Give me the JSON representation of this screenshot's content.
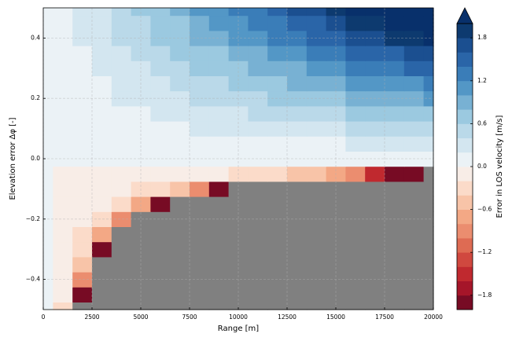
{
  "chart_data": {
    "type": "contourf",
    "xlabel": "Range [m]",
    "ylabel": "Elevation error Δφ [-]",
    "colorbar_label": "Error in LOS velocity [m/s]",
    "xlim": [
      0,
      20000
    ],
    "ylim": [
      -0.5,
      0.5
    ],
    "xticks": [
      0,
      2500,
      5000,
      7500,
      10000,
      12500,
      15000,
      17500,
      20000
    ],
    "yticks": [
      {
        "value": -0.4,
        "label": "−0.4"
      },
      {
        "value": -0.2,
        "label": "−0.2"
      },
      {
        "value": 0,
        "label": "0.0"
      },
      0.2,
      0.4
    ],
    "grid": true,
    "masked_color": "#808080",
    "extend": "max",
    "levels": [
      -2,
      -1.8,
      -1.6,
      -1.4,
      -1.2,
      -1,
      -0.8,
      -0.6,
      -0.4,
      -0.2,
      0,
      0.2,
      0.4,
      0.6,
      0.8,
      1,
      1.2,
      1.4,
      1.6,
      1.8,
      2
    ],
    "colors": [
      "#770b24",
      "#a51529",
      "#c0292f",
      "#d0483f",
      "#de6b53",
      "#eb8d6f",
      "#f3a885",
      "#f8c4a8",
      "#fbdbc9",
      "#f8ede7",
      "#ebf2f6",
      "#d3e6f0",
      "#bad9e9",
      "#9bc9e0",
      "#78b1d3",
      "#5397c6",
      "#3a7db8",
      "#2a65a8",
      "#1b4f90",
      "#0d3a6f"
    ],
    "extend_color": "#08306b",
    "cbar_ticks": [
      {
        "value": -1.8,
        "label": "−1.8"
      },
      {
        "value": -1.2,
        "label": "−1.2"
      },
      {
        "value": -0.6,
        "label": "−0.6"
      },
      {
        "value": 0,
        "label": "0.0"
      },
      0.6,
      1.2,
      1.8
    ],
    "x": [
      0,
      1000,
      2000,
      3000,
      4000,
      5000,
      6000,
      7000,
      8000,
      9000,
      10000,
      11000,
      12000,
      13000,
      14000,
      15000,
      16000,
      17000,
      18000,
      19000,
      20000
    ],
    "y": [
      -0.5,
      -0.45,
      -0.4,
      -0.35,
      -0.3,
      -0.25,
      -0.2,
      -0.15,
      -0.1,
      -0.05,
      0,
      0.05,
      0.1,
      0.15,
      0.2,
      0.25,
      0.3,
      0.35,
      0.4,
      0.45,
      0.5
    ],
    "z": [
      [
        0,
        -0.25,
        null,
        null,
        null,
        null,
        null,
        null,
        null,
        null,
        null,
        null,
        null,
        null,
        null,
        null,
        null,
        null,
        null,
        null,
        null
      ],
      [
        0,
        -0.2,
        -1.9,
        null,
        null,
        null,
        null,
        null,
        null,
        null,
        null,
        null,
        null,
        null,
        null,
        null,
        null,
        null,
        null,
        null,
        null
      ],
      [
        0,
        -0.17,
        -1,
        null,
        null,
        null,
        null,
        null,
        null,
        null,
        null,
        null,
        null,
        null,
        null,
        null,
        null,
        null,
        null,
        null,
        null
      ],
      [
        0,
        -0.13,
        -0.58,
        null,
        null,
        null,
        null,
        null,
        null,
        null,
        null,
        null,
        null,
        null,
        null,
        null,
        null,
        null,
        null,
        null,
        null
      ],
      [
        0,
        -0.11,
        -0.38,
        -1.9,
        null,
        null,
        null,
        null,
        null,
        null,
        null,
        null,
        null,
        null,
        null,
        null,
        null,
        null,
        null,
        null,
        null
      ],
      [
        0,
        -0.08,
        -0.25,
        -0.75,
        null,
        null,
        null,
        null,
        null,
        null,
        null,
        null,
        null,
        null,
        null,
        null,
        null,
        null,
        null,
        null,
        null
      ],
      [
        0,
        -0.06,
        -0.17,
        -0.38,
        -1,
        null,
        null,
        null,
        null,
        null,
        null,
        null,
        null,
        null,
        null,
        null,
        null,
        null,
        null,
        null,
        null
      ],
      [
        0,
        -0.04,
        -0.11,
        -0.2,
        -0.38,
        -0.75,
        -1.9,
        null,
        null,
        null,
        null,
        null,
        null,
        null,
        null,
        null,
        null,
        null,
        null,
        null,
        null
      ],
      [
        0,
        -0.03,
        -0.06,
        -0.11,
        -0.17,
        -0.25,
        -0.38,
        -0.58,
        -1,
        -1.9,
        null,
        null,
        null,
        null,
        null,
        null,
        null,
        null,
        null,
        null,
        null
      ],
      [
        0,
        -0.01,
        -0.03,
        -0.04,
        -0.06,
        -0.08,
        -0.11,
        -0.13,
        -0.17,
        -0.2,
        -0.25,
        -0.31,
        -0.38,
        -0.46,
        -0.58,
        -0.75,
        -1,
        -1.42,
        -1.9,
        -1.95,
        null
      ],
      [
        0,
        0,
        0,
        0,
        0,
        0,
        0,
        0,
        0,
        0,
        0,
        0,
        0,
        0,
        0,
        0,
        0,
        0,
        0,
        0,
        0
      ],
      [
        0,
        0.01,
        0.03,
        0.04,
        0.05,
        0.06,
        0.08,
        0.09,
        0.1,
        0.11,
        0.13,
        0.14,
        0.15,
        0.16,
        0.18,
        0.19,
        0.2,
        0.21,
        0.23,
        0.24,
        0.25
      ],
      [
        0,
        0.03,
        0.05,
        0.08,
        0.1,
        0.13,
        0.15,
        0.18,
        0.2,
        0.23,
        0.25,
        0.28,
        0.3,
        0.33,
        0.35,
        0.38,
        0.4,
        0.43,
        0.45,
        0.48,
        0.5
      ],
      [
        0,
        0.04,
        0.08,
        0.11,
        0.15,
        0.19,
        0.23,
        0.26,
        0.3,
        0.34,
        0.38,
        0.41,
        0.45,
        0.49,
        0.53,
        0.56,
        0.6,
        0.64,
        0.68,
        0.71,
        0.75
      ],
      [
        0,
        0.05,
        0.1,
        0.15,
        0.2,
        0.25,
        0.3,
        0.35,
        0.4,
        0.45,
        0.5,
        0.55,
        0.6,
        0.65,
        0.7,
        0.75,
        0.8,
        0.85,
        0.9,
        0.95,
        1
      ],
      [
        0,
        0.06,
        0.13,
        0.19,
        0.25,
        0.31,
        0.38,
        0.44,
        0.5,
        0.56,
        0.63,
        0.69,
        0.75,
        0.81,
        0.88,
        0.94,
        1,
        1.06,
        1.13,
        1.19,
        1.25
      ],
      [
        0,
        0.08,
        0.15,
        0.23,
        0.3,
        0.38,
        0.45,
        0.53,
        0.6,
        0.68,
        0.75,
        0.83,
        0.9,
        0.98,
        1.05,
        1.13,
        1.2,
        1.28,
        1.35,
        1.43,
        1.5
      ],
      [
        0,
        0.09,
        0.18,
        0.26,
        0.35,
        0.44,
        0.53,
        0.61,
        0.7,
        0.79,
        0.88,
        0.96,
        1.05,
        1.14,
        1.23,
        1.31,
        1.4,
        1.49,
        1.58,
        1.66,
        1.75
      ],
      [
        0,
        0.1,
        0.2,
        0.3,
        0.4,
        0.5,
        0.6,
        0.7,
        0.8,
        0.9,
        1,
        1.1,
        1.2,
        1.3,
        1.4,
        1.5,
        1.6,
        1.7,
        1.8,
        1.9,
        2
      ],
      [
        0,
        0.11,
        0.23,
        0.34,
        0.45,
        0.56,
        0.68,
        0.79,
        0.9,
        1.01,
        1.13,
        1.24,
        1.35,
        1.46,
        1.58,
        1.69,
        1.8,
        1.91,
        2.03,
        2.14,
        2.25
      ],
      [
        0,
        0.13,
        0.25,
        0.38,
        0.5,
        0.63,
        0.75,
        0.88,
        1,
        1.13,
        1.25,
        1.38,
        1.5,
        1.63,
        1.75,
        1.88,
        2,
        2.13,
        2.25,
        2.38,
        2.5
      ]
    ]
  }
}
